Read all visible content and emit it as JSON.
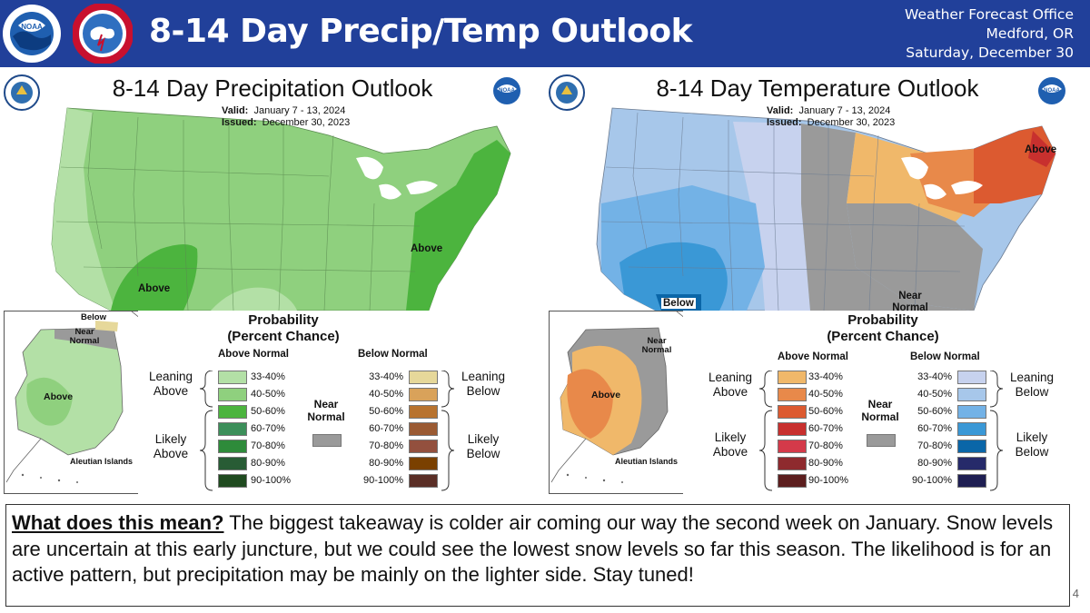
{
  "header": {
    "title": "8-14 Day Precip/Temp Outlook",
    "office_line1": "Weather Forecast Office",
    "office_line2": "Medford, OR",
    "office_line3": "Saturday, December 30",
    "logo_left": "noaa-logo",
    "logo_right": "nws-logo"
  },
  "precip": {
    "title": "8-14 Day Precipitation Outlook",
    "valid_label": "Valid:",
    "valid_value": "January 7 - 13, 2024",
    "issued_label": "Issued:",
    "issued_value": "December 30, 2023",
    "labels": {
      "above_ne": "Above",
      "above_sw": "Above",
      "ak_below": "Below",
      "ak_near": "Near Normal",
      "ak_above": "Above",
      "aleutian": "Aleutian Islands"
    },
    "legend": {
      "title_line1": "Probability",
      "title_line2": "(Percent Chance)",
      "above_head": "Above Normal",
      "below_head": "Below Normal",
      "leaning_above": "Leaning Above",
      "likely_above": "Likely Above",
      "leaning_below": "Leaning Below",
      "likely_below": "Likely Below",
      "near_normal": "Near Normal",
      "near_color": "#9a9a9a",
      "above": [
        {
          "label": "33-40%",
          "color": "#b3e0a6"
        },
        {
          "label": "40-50%",
          "color": "#8fd07e"
        },
        {
          "label": "50-60%",
          "color": "#4cb43e"
        },
        {
          "label": "60-70%",
          "color": "#3c8f5a"
        },
        {
          "label": "70-80%",
          "color": "#2e8b3a"
        },
        {
          "label": "80-90%",
          "color": "#285c35"
        },
        {
          "label": "90-100%",
          "color": "#1f4a1f"
        }
      ],
      "below": [
        {
          "label": "33-40%",
          "color": "#e6d89a"
        },
        {
          "label": "40-50%",
          "color": "#d9a25a"
        },
        {
          "label": "50-60%",
          "color": "#b8732f"
        },
        {
          "label": "60-70%",
          "color": "#9a5a33"
        },
        {
          "label": "70-80%",
          "color": "#93503e"
        },
        {
          "label": "80-90%",
          "color": "#7a4000"
        },
        {
          "label": "90-100%",
          "color": "#5a2e26"
        }
      ]
    }
  },
  "temp": {
    "title": "8-14 Day Temperature Outlook",
    "valid_label": "Valid:",
    "valid_value": "January 7 - 13, 2024",
    "issued_label": "Issued:",
    "issued_value": "December 30, 2023",
    "labels": {
      "above_ne": "Above",
      "below_sw": "Below",
      "near_normal": "Near Normal",
      "ak_near": "Near Normal",
      "ak_above": "Above",
      "aleutian": "Aleutian Islands"
    },
    "legend": {
      "title_line1": "Probability",
      "title_line2": "(Percent Chance)",
      "above_head": "Above Normal",
      "below_head": "Below Normal",
      "leaning_above": "Leaning Above",
      "likely_above": "Likely Above",
      "leaning_below": "Leaning Below",
      "likely_below": "Likely Below",
      "near_normal": "Near Normal",
      "near_color": "#9a9a9a",
      "above": [
        {
          "label": "33-40%",
          "color": "#f0b86a"
        },
        {
          "label": "40-50%",
          "color": "#e8894a"
        },
        {
          "label": "50-60%",
          "color": "#dc5a30"
        },
        {
          "label": "60-70%",
          "color": "#c8302e"
        },
        {
          "label": "70-80%",
          "color": "#d43a4a"
        },
        {
          "label": "80-90%",
          "color": "#8e2a2e"
        },
        {
          "label": "90-100%",
          "color": "#5c1e1e"
        }
      ],
      "below": [
        {
          "label": "33-40%",
          "color": "#c7d2ee"
        },
        {
          "label": "40-50%",
          "color": "#a7c7ea"
        },
        {
          "label": "50-60%",
          "color": "#73b2e6"
        },
        {
          "label": "60-70%",
          "color": "#3a98d6"
        },
        {
          "label": "70-80%",
          "color": "#0a66a8"
        },
        {
          "label": "80-90%",
          "color": "#262a6a"
        },
        {
          "label": "90-100%",
          "color": "#1e1e52"
        }
      ]
    }
  },
  "message": {
    "lead": "What does this mean?",
    "body": " The biggest takeaway is colder air coming our way the second week on January. Snow levels are uncertain at this early juncture, but we could see the lowest snow levels so far this season. The likelihood is for an active pattern, but precipitation may be mainly on the lighter side. Stay tuned!"
  },
  "slide_number": "4"
}
